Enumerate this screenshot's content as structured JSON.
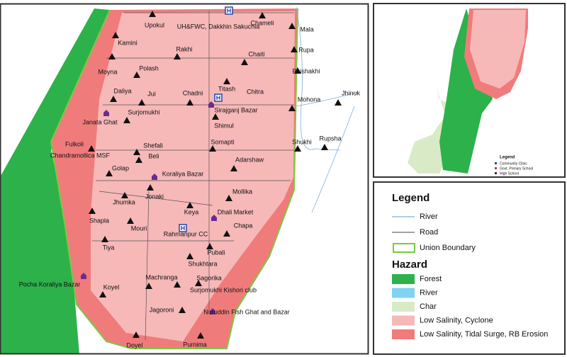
{
  "map": {
    "places": [
      "Upokul",
      "UH&FWC, Dakkhin Sakuchia",
      "Chameli",
      "Mala",
      "Kamini",
      "Rakhi",
      "Rupa",
      "Chaiti",
      "Moyna",
      "Polash",
      "Boishakhi",
      "Titash",
      "Daliya",
      "Jui",
      "Chadni",
      "Chitra",
      "Mohona",
      "Jhinuk",
      "Surjomukhi",
      "Sirajganj Bazar",
      "Shimul",
      "Janata Ghat",
      "Rupsha",
      "Fulkoli",
      "Chandramollica MSF",
      "Shefali",
      "Somapti",
      "Shukhi",
      "Beli",
      "Adarshaw",
      "Golap",
      "Koraliya Bazar",
      "Jonaki",
      "Mollika",
      "Jhumka",
      "Keya",
      "Dhali Market",
      "Shapla",
      "Mouri",
      "Chapa",
      "Rahmanpur CC",
      "Tiya",
      "Pubali",
      "Shukhtara",
      "Pocha Koraliya Bazar",
      "Machranga",
      "Sagorika",
      "Koyel",
      "Surjomukhi Kishori club",
      "Nuruddin Fish Ghat and Bazar",
      "Jagoroni",
      "Doyel",
      "Purnima"
    ]
  },
  "inset": {
    "legend_title": "Legend",
    "items": [
      "Community Clinic",
      "Govt. Primary School",
      "High School"
    ]
  },
  "legend": {
    "title": "Legend",
    "lines": [
      "River",
      "Road",
      "Union Boundary"
    ],
    "hazard_title": "Hazard",
    "hazards": [
      "Forest",
      "River",
      "Char",
      "Low Salinity, Cyclone",
      "Low Salinity, Tidal Surge, RB Erosion"
    ]
  }
}
